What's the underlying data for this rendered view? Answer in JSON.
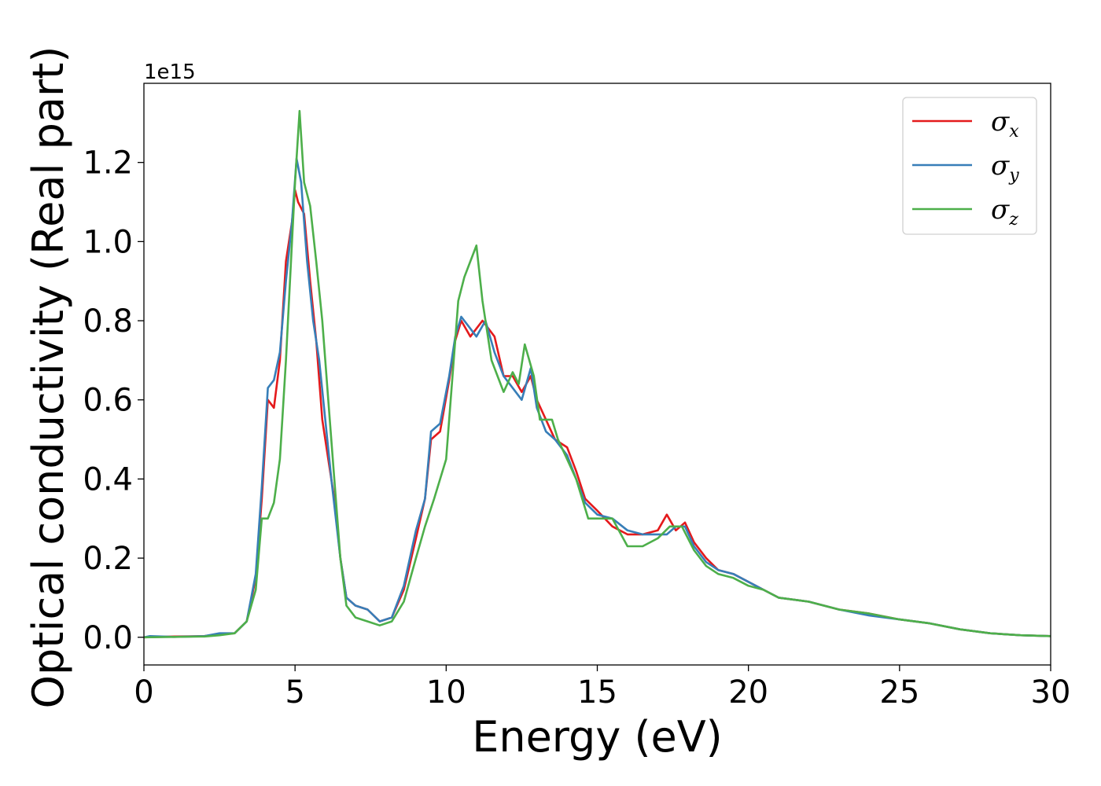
{
  "chart_data": {
    "type": "line",
    "xlabel": "Energy (eV)",
    "ylabel": "Optical conductivity (Real part)",
    "y_offset_label": "1e15",
    "xlim": [
      0,
      30
    ],
    "ylim": [
      -0.07,
      1.4
    ],
    "x_ticks": [
      0,
      5,
      10,
      15,
      20,
      25,
      30
    ],
    "x_tick_labels": [
      "0",
      "5",
      "10",
      "15",
      "20",
      "25",
      "30"
    ],
    "y_ticks": [
      0.0,
      0.2,
      0.4,
      0.6,
      0.8,
      1.0,
      1.2
    ],
    "y_tick_labels": [
      "0.0",
      "0.2",
      "0.4",
      "0.6",
      "0.8",
      "1.0",
      "1.2"
    ],
    "grid": false,
    "legend_position": "top-right",
    "series": [
      {
        "name": "σx",
        "legend_base": "σ",
        "legend_sub": "x",
        "color": "#e41a1c",
        "points": [
          [
            0,
            0
          ],
          [
            1,
            0.002
          ],
          [
            2,
            0.003
          ],
          [
            2.5,
            0.008
          ],
          [
            3,
            0.01
          ],
          [
            3.4,
            0.04
          ],
          [
            3.7,
            0.15
          ],
          [
            3.9,
            0.35
          ],
          [
            4.1,
            0.6
          ],
          [
            4.3,
            0.58
          ],
          [
            4.5,
            0.7
          ],
          [
            4.7,
            0.95
          ],
          [
            4.9,
            1.05
          ],
          [
            5.0,
            1.13
          ],
          [
            5.1,
            1.1
          ],
          [
            5.3,
            1.07
          ],
          [
            5.5,
            0.9
          ],
          [
            5.7,
            0.75
          ],
          [
            5.9,
            0.55
          ],
          [
            6.1,
            0.45
          ],
          [
            6.3,
            0.35
          ],
          [
            6.5,
            0.2
          ],
          [
            6.7,
            0.1
          ],
          [
            7,
            0.08
          ],
          [
            7.4,
            0.07
          ],
          [
            7.8,
            0.04
          ],
          [
            8.2,
            0.05
          ],
          [
            8.6,
            0.12
          ],
          [
            9,
            0.25
          ],
          [
            9.3,
            0.35
          ],
          [
            9.5,
            0.5
          ],
          [
            9.8,
            0.52
          ],
          [
            10.1,
            0.65
          ],
          [
            10.3,
            0.75
          ],
          [
            10.5,
            0.8
          ],
          [
            10.8,
            0.76
          ],
          [
            11.0,
            0.78
          ],
          [
            11.2,
            0.8
          ],
          [
            11.6,
            0.76
          ],
          [
            11.9,
            0.66
          ],
          [
            12.2,
            0.66
          ],
          [
            12.5,
            0.62
          ],
          [
            12.8,
            0.66
          ],
          [
            13.0,
            0.6
          ],
          [
            13.3,
            0.55
          ],
          [
            13.6,
            0.5
          ],
          [
            14.0,
            0.48
          ],
          [
            14.3,
            0.42
          ],
          [
            14.6,
            0.35
          ],
          [
            15,
            0.32
          ],
          [
            15.5,
            0.28
          ],
          [
            16,
            0.26
          ],
          [
            16.5,
            0.26
          ],
          [
            17,
            0.27
          ],
          [
            17.3,
            0.31
          ],
          [
            17.6,
            0.27
          ],
          [
            17.9,
            0.29
          ],
          [
            18.2,
            0.24
          ],
          [
            18.6,
            0.2
          ],
          [
            19,
            0.17
          ],
          [
            19.5,
            0.16
          ],
          [
            20,
            0.14
          ],
          [
            20.5,
            0.12
          ],
          [
            21,
            0.1
          ],
          [
            22,
            0.09
          ],
          [
            23,
            0.07
          ],
          [
            24,
            0.06
          ],
          [
            25,
            0.045
          ],
          [
            26,
            0.035
          ],
          [
            27,
            0.02
          ],
          [
            28,
            0.01
          ],
          [
            29,
            0.005
          ],
          [
            30,
            0.003
          ]
        ]
      },
      {
        "name": "σy",
        "legend_base": "σ",
        "legend_sub": "y",
        "color": "#377eb8",
        "points": [
          [
            0,
            0
          ],
          [
            0.2,
            0.003
          ],
          [
            1,
            0.001
          ],
          [
            2,
            0.003
          ],
          [
            2.5,
            0.01
          ],
          [
            3,
            0.01
          ],
          [
            3.4,
            0.04
          ],
          [
            3.7,
            0.16
          ],
          [
            3.9,
            0.38
          ],
          [
            4.1,
            0.63
          ],
          [
            4.3,
            0.65
          ],
          [
            4.5,
            0.72
          ],
          [
            4.7,
            0.9
          ],
          [
            4.9,
            1.05
          ],
          [
            5.05,
            1.21
          ],
          [
            5.2,
            1.15
          ],
          [
            5.4,
            0.95
          ],
          [
            5.6,
            0.8
          ],
          [
            5.8,
            0.7
          ],
          [
            6.0,
            0.55
          ],
          [
            6.2,
            0.4
          ],
          [
            6.5,
            0.2
          ],
          [
            6.7,
            0.1
          ],
          [
            7,
            0.08
          ],
          [
            7.4,
            0.07
          ],
          [
            7.8,
            0.04
          ],
          [
            8.2,
            0.05
          ],
          [
            8.6,
            0.13
          ],
          [
            9,
            0.27
          ],
          [
            9.3,
            0.35
          ],
          [
            9.5,
            0.52
          ],
          [
            9.8,
            0.54
          ],
          [
            10.1,
            0.66
          ],
          [
            10.3,
            0.76
          ],
          [
            10.5,
            0.81
          ],
          [
            10.8,
            0.78
          ],
          [
            11.0,
            0.76
          ],
          [
            11.3,
            0.8
          ],
          [
            11.6,
            0.72
          ],
          [
            11.9,
            0.66
          ],
          [
            12.2,
            0.63
          ],
          [
            12.5,
            0.6
          ],
          [
            12.8,
            0.68
          ],
          [
            13.0,
            0.58
          ],
          [
            13.3,
            0.52
          ],
          [
            13.6,
            0.5
          ],
          [
            14.0,
            0.46
          ],
          [
            14.3,
            0.4
          ],
          [
            14.6,
            0.34
          ],
          [
            15,
            0.31
          ],
          [
            15.5,
            0.3
          ],
          [
            16,
            0.27
          ],
          [
            16.5,
            0.26
          ],
          [
            17,
            0.26
          ],
          [
            17.3,
            0.26
          ],
          [
            17.6,
            0.28
          ],
          [
            17.9,
            0.28
          ],
          [
            18.2,
            0.23
          ],
          [
            18.6,
            0.19
          ],
          [
            19,
            0.17
          ],
          [
            19.5,
            0.16
          ],
          [
            20,
            0.14
          ],
          [
            20.5,
            0.12
          ],
          [
            21,
            0.1
          ],
          [
            22,
            0.09
          ],
          [
            23,
            0.07
          ],
          [
            24,
            0.055
          ],
          [
            25,
            0.045
          ],
          [
            26,
            0.035
          ],
          [
            27,
            0.02
          ],
          [
            28,
            0.01
          ],
          [
            29,
            0.005
          ],
          [
            30,
            0.003
          ]
        ]
      },
      {
        "name": "σz",
        "legend_base": "σ",
        "legend_sub": "z",
        "color": "#4daf4a",
        "points": [
          [
            0,
            0
          ],
          [
            1,
            0.001
          ],
          [
            2,
            0.002
          ],
          [
            2.5,
            0.005
          ],
          [
            3,
            0.01
          ],
          [
            3.4,
            0.04
          ],
          [
            3.7,
            0.12
          ],
          [
            3.9,
            0.3
          ],
          [
            4.1,
            0.3
          ],
          [
            4.3,
            0.34
          ],
          [
            4.5,
            0.45
          ],
          [
            4.7,
            0.7
          ],
          [
            4.9,
            1.0
          ],
          [
            5.0,
            1.15
          ],
          [
            5.15,
            1.33
          ],
          [
            5.3,
            1.15
          ],
          [
            5.5,
            1.09
          ],
          [
            5.7,
            0.95
          ],
          [
            5.9,
            0.8
          ],
          [
            6.1,
            0.6
          ],
          [
            6.3,
            0.4
          ],
          [
            6.5,
            0.2
          ],
          [
            6.7,
            0.08
          ],
          [
            7,
            0.05
          ],
          [
            7.4,
            0.04
          ],
          [
            7.8,
            0.03
          ],
          [
            8.2,
            0.04
          ],
          [
            8.6,
            0.09
          ],
          [
            9,
            0.2
          ],
          [
            9.3,
            0.28
          ],
          [
            9.6,
            0.35
          ],
          [
            10,
            0.45
          ],
          [
            10.2,
            0.65
          ],
          [
            10.4,
            0.85
          ],
          [
            10.6,
            0.91
          ],
          [
            10.8,
            0.95
          ],
          [
            11.0,
            0.99
          ],
          [
            11.2,
            0.85
          ],
          [
            11.5,
            0.7
          ],
          [
            11.9,
            0.62
          ],
          [
            12.2,
            0.67
          ],
          [
            12.4,
            0.64
          ],
          [
            12.6,
            0.74
          ],
          [
            12.9,
            0.66
          ],
          [
            13.1,
            0.55
          ],
          [
            13.5,
            0.55
          ],
          [
            13.7,
            0.5
          ],
          [
            14.0,
            0.45
          ],
          [
            14.3,
            0.4
          ],
          [
            14.7,
            0.3
          ],
          [
            15,
            0.3
          ],
          [
            15.5,
            0.3
          ],
          [
            16,
            0.23
          ],
          [
            16.5,
            0.23
          ],
          [
            17,
            0.25
          ],
          [
            17.4,
            0.28
          ],
          [
            17.8,
            0.28
          ],
          [
            18.2,
            0.22
          ],
          [
            18.6,
            0.18
          ],
          [
            19,
            0.16
          ],
          [
            19.5,
            0.15
          ],
          [
            20,
            0.13
          ],
          [
            20.5,
            0.12
          ],
          [
            21,
            0.1
          ],
          [
            22,
            0.09
          ],
          [
            23,
            0.07
          ],
          [
            24,
            0.06
          ],
          [
            25,
            0.045
          ],
          [
            26,
            0.035
          ],
          [
            27,
            0.02
          ],
          [
            28,
            0.01
          ],
          [
            29,
            0.005
          ],
          [
            30,
            0.003
          ]
        ]
      }
    ]
  }
}
